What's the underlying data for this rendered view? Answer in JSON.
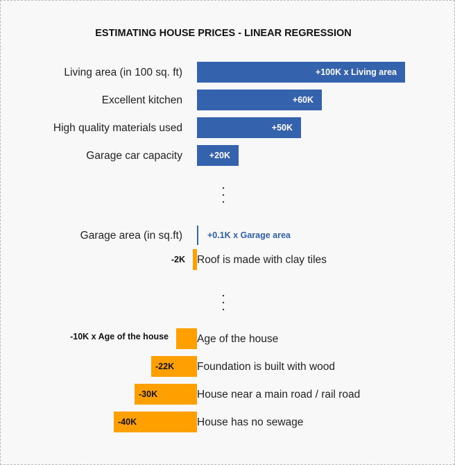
{
  "chart_data": {
    "type": "bar",
    "orientation": "horizontal",
    "title": "ESTIMATING HOUSE PRICES - LINEAR REGRESSION",
    "colors": {
      "positive": "#3562ad",
      "negative": "#ffa000"
    },
    "groups": [
      [
        {
          "category": "Living area (in 100 sq. ft)",
          "value": 100,
          "label": "+100K x  Living area"
        },
        {
          "category": "Excellent kitchen",
          "value": 60,
          "label": "+60K"
        },
        {
          "category": "High quality materials used",
          "value": 50,
          "label": "+50K"
        },
        {
          "category": "Garage car capacity",
          "value": 20,
          "label": "+20K"
        }
      ],
      [
        {
          "category": "Garage area (in sq.ft)",
          "value": 0.1,
          "label": "+0.1K x Garage area"
        },
        {
          "category": "Roof is made with clay tiles",
          "value": -2,
          "label": "-2K"
        }
      ],
      [
        {
          "category": "Age of the house",
          "value": -10,
          "label": "-10K x Age of the house"
        },
        {
          "category": "Foundation is built with wood",
          "value": -22,
          "label": "-22K"
        },
        {
          "category": "House near a main road / rail road",
          "value": -30,
          "label": "-30K"
        },
        {
          "category": "House has no sewage",
          "value": -40,
          "label": "-40K"
        }
      ]
    ]
  }
}
